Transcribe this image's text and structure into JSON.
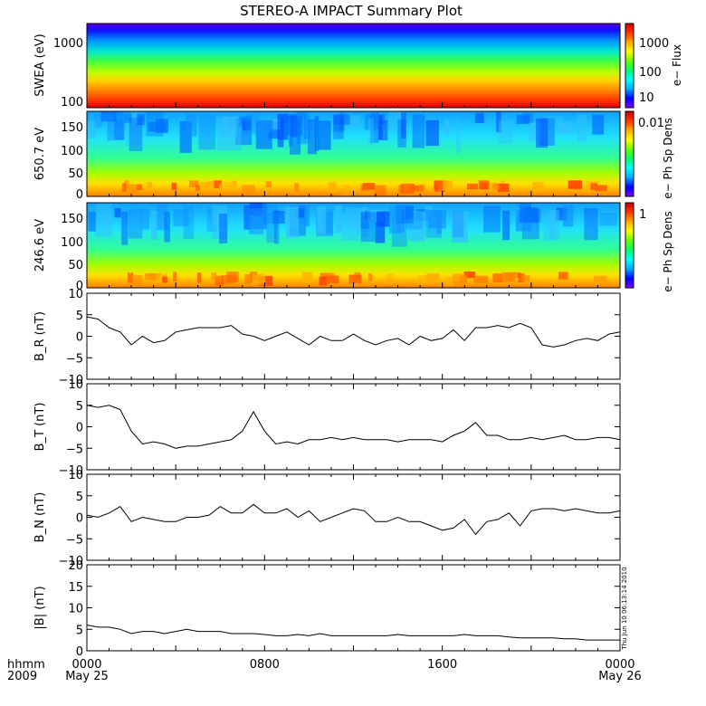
{
  "title": "STEREO-A IMPACT Summary Plot",
  "timestamp_label": "Thu Jun 10 06:13:14 2010",
  "x_axis": {
    "unit_label": "hhmm",
    "year_label": "2009",
    "ticks": [
      {
        "hour": 0,
        "time": "0000",
        "date": "May 25"
      },
      {
        "hour": 8,
        "time": "0800",
        "date": ""
      },
      {
        "hour": 16,
        "time": "1600",
        "date": ""
      },
      {
        "hour": 24,
        "time": "0000",
        "date": "May 26"
      }
    ]
  },
  "colorbar_colors": [
    "#7f00ff",
    "#0000ff",
    "#00aaff",
    "#00ffff",
    "#00ff66",
    "#66ff00",
    "#ffff00",
    "#ffaa00",
    "#ff3300",
    "#cc0000"
  ],
  "chart_data": [
    {
      "id": "swea",
      "type": "heatmap",
      "ylabel": "SWEA (eV)",
      "colorbar_label": "e− Flux",
      "y_scale": "log",
      "ylim": [
        90,
        2000
      ],
      "y_ticks": [
        "1000",
        "100"
      ],
      "colorbar_ticks": [
        "1000",
        "100",
        "10"
      ]
    },
    {
      "id": "pad650",
      "type": "heatmap",
      "ylabel": "650.7 eV",
      "colorbar_label": "e− Ph Sp Dens",
      "ylim": [
        0,
        180
      ],
      "y_ticks": [
        "150",
        "100",
        "50",
        "0"
      ],
      "colorbar_ticks": [
        "0.01"
      ]
    },
    {
      "id": "pad246",
      "type": "heatmap",
      "ylabel": "246.6 eV",
      "colorbar_label": "e− Ph Sp Dens",
      "ylim": [
        0,
        180
      ],
      "y_ticks": [
        "150",
        "100",
        "50",
        "0"
      ],
      "colorbar_ticks": [
        "1"
      ]
    },
    {
      "id": "br",
      "type": "line",
      "ylabel": "B_R (nT)",
      "ylim": [
        -10,
        10
      ],
      "y_ticks": [
        "10",
        "5",
        "0",
        "−5",
        "−10"
      ],
      "x": [
        0,
        0.5,
        1,
        1.5,
        2,
        2.5,
        3,
        3.5,
        4,
        4.5,
        5,
        5.5,
        6,
        6.5,
        7,
        7.5,
        8,
        8.5,
        9,
        9.5,
        10,
        10.5,
        11,
        11.5,
        12,
        12.5,
        13,
        13.5,
        14,
        14.5,
        15,
        15.5,
        16,
        16.5,
        17,
        17.5,
        18,
        18.5,
        19,
        19.5,
        20,
        20.5,
        21,
        21.5,
        22,
        22.5,
        23,
        23.5,
        24
      ],
      "y": [
        4.5,
        4,
        2,
        1,
        -2,
        0,
        -1.5,
        -1,
        1,
        1.5,
        2,
        2,
        2,
        2.5,
        0.5,
        0,
        -1,
        0,
        1,
        -0.5,
        -2,
        0,
        -1,
        -1,
        0.5,
        -1,
        -2,
        -1,
        -0.5,
        -2,
        0,
        -1,
        -0.5,
        1.5,
        -1,
        2,
        2,
        2.5,
        2,
        3,
        2,
        -2,
        -2.5,
        -2,
        -1,
        -0.5,
        -1,
        0.5,
        1
      ]
    },
    {
      "id": "bt",
      "type": "line",
      "ylabel": "B_T (nT)",
      "ylim": [
        -10,
        10
      ],
      "y_ticks": [
        "10",
        "5",
        "0",
        "−5",
        "−10"
      ],
      "x": [
        0,
        0.5,
        1,
        1.5,
        2,
        2.5,
        3,
        3.5,
        4,
        4.5,
        5,
        5.5,
        6,
        6.5,
        7,
        7.5,
        8,
        8.5,
        9,
        9.5,
        10,
        10.5,
        11,
        11.5,
        12,
        12.5,
        13,
        13.5,
        14,
        14.5,
        15,
        15.5,
        16,
        16.5,
        17,
        17.5,
        18,
        18.5,
        19,
        19.5,
        20,
        20.5,
        21,
        21.5,
        22,
        22.5,
        23,
        23.5,
        24
      ],
      "y": [
        5,
        4.5,
        5,
        4,
        -1,
        -4,
        -3.5,
        -4,
        -5,
        -4.5,
        -4.5,
        -4,
        -3.5,
        -3,
        -1,
        3.5,
        -1,
        -4,
        -3.5,
        -4,
        -3,
        -3,
        -2.5,
        -3,
        -2.5,
        -3,
        -3,
        -3,
        -3.5,
        -3,
        -3,
        -3,
        -3.5,
        -2,
        -1,
        1,
        -2,
        -2,
        -3,
        -3,
        -2.5,
        -3,
        -2.5,
        -2,
        -3,
        -3,
        -2.5,
        -2.5,
        -3
      ]
    },
    {
      "id": "bn",
      "type": "line",
      "ylabel": "B_N (nT)",
      "ylim": [
        -10,
        10
      ],
      "y_ticks": [
        "10",
        "5",
        "0",
        "−5",
        "−10"
      ],
      "x": [
        0,
        0.5,
        1,
        1.5,
        2,
        2.5,
        3,
        3.5,
        4,
        4.5,
        5,
        5.5,
        6,
        6.5,
        7,
        7.5,
        8,
        8.5,
        9,
        9.5,
        10,
        10.5,
        11,
        11.5,
        12,
        12.5,
        13,
        13.5,
        14,
        14.5,
        15,
        15.5,
        16,
        16.5,
        17,
        17.5,
        18,
        18.5,
        19,
        19.5,
        20,
        20.5,
        21,
        21.5,
        22,
        22.5,
        23,
        23.5,
        24
      ],
      "y": [
        0.5,
        0,
        1,
        2.5,
        -1,
        0,
        -0.5,
        -1,
        -1,
        0,
        0,
        0.5,
        2.5,
        1,
        1,
        3,
        1,
        1,
        2,
        0,
        1.5,
        -1,
        0,
        1,
        2,
        1.5,
        -1,
        -1,
        0,
        -1,
        -1,
        -2,
        -3,
        -2.5,
        -0.5,
        -4,
        -1,
        -0.5,
        1,
        -2,
        1.5,
        2,
        2,
        1.5,
        2,
        1.5,
        1,
        1,
        1.5
      ]
    },
    {
      "id": "bmag",
      "type": "line",
      "ylabel": "|B| (nT)",
      "ylim": [
        0,
        20
      ],
      "y_ticks": [
        "20",
        "15",
        "10",
        "5",
        "0"
      ],
      "x": [
        0,
        0.5,
        1,
        1.5,
        2,
        2.5,
        3,
        3.5,
        4,
        4.5,
        5,
        5.5,
        6,
        6.5,
        7,
        7.5,
        8,
        8.5,
        9,
        9.5,
        10,
        10.5,
        11,
        11.5,
        12,
        12.5,
        13,
        13.5,
        14,
        14.5,
        15,
        15.5,
        16,
        16.5,
        17,
        17.5,
        18,
        18.5,
        19,
        19.5,
        20,
        20.5,
        21,
        21.5,
        22,
        22.5,
        23,
        23.5,
        24
      ],
      "y": [
        6,
        5.5,
        5.5,
        5,
        4,
        4.5,
        4.5,
        4,
        4.5,
        5,
        4.5,
        4.5,
        4.5,
        4,
        4,
        4,
        3.8,
        3.5,
        3.5,
        3.8,
        3.5,
        4,
        3.5,
        3.5,
        3.5,
        3.5,
        3.5,
        3.5,
        3.8,
        3.5,
        3.5,
        3.5,
        3.5,
        3.5,
        3.8,
        3.5,
        3.5,
        3.5,
        3.2,
        3,
        3,
        3,
        3,
        2.8,
        2.8,
        2.5,
        2.5,
        2.5,
        2.5
      ]
    }
  ]
}
